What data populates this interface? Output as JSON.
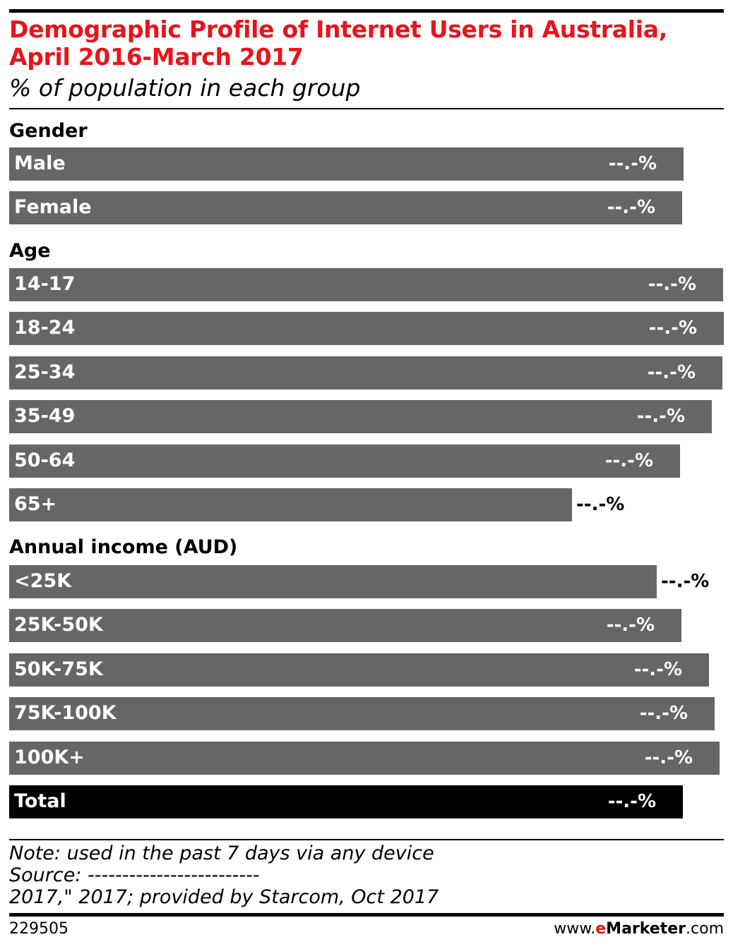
{
  "title_line1": "Demographic Profile of Internet Users in Australia,",
  "title_line2": "April 2016-March 2017",
  "subtitle": "% of population in each group",
  "chart_data": {
    "type": "bar",
    "orientation": "horizontal",
    "note": "values hidden in source; fill = bar length relative to longest bar",
    "groups": [
      {
        "heading": "Gender",
        "items": [
          {
            "label": "Male",
            "value_label": "--.-%",
            "fill": 0.944
          },
          {
            "label": "Female",
            "value_label": "--.-%",
            "fill": 0.942
          }
        ]
      },
      {
        "heading": "Age",
        "items": [
          {
            "label": "14-17",
            "value_label": "--.-%",
            "fill": 0.999
          },
          {
            "label": "18-24",
            "value_label": "--.-%",
            "fill": 1.0
          },
          {
            "label": "25-34",
            "value_label": "--.-%",
            "fill": 0.998
          },
          {
            "label": "35-49",
            "value_label": "--.-%",
            "fill": 0.983
          },
          {
            "label": "50-64",
            "value_label": "--.-%",
            "fill": 0.939
          },
          {
            "label": "65+",
            "value_label": "--.-%",
            "fill": 0.788
          }
        ]
      },
      {
        "heading": "Annual income (AUD)",
        "items": [
          {
            "label": "<25K",
            "value_label": "--.-%",
            "fill": 0.906
          },
          {
            "label": "25K-50K",
            "value_label": "--.-%",
            "fill": 0.941
          },
          {
            "label": "50K-75K",
            "value_label": "--.-%",
            "fill": 0.979
          },
          {
            "label": "75K-100K",
            "value_label": "--.-%",
            "fill": 0.987
          },
          {
            "label": "100K+",
            "value_label": "--.-%",
            "fill": 0.994
          }
        ]
      }
    ],
    "total": {
      "label": "Total",
      "value_label": "--.-%",
      "fill": 0.943
    },
    "colors": {
      "bar": "#666666",
      "total": "#000000",
      "title": "#e8141b"
    }
  },
  "notes": {
    "line1": "Note: used in the past 7 days via any device",
    "line2": "Source: -------------------------",
    "line3": "2017,\" 2017; provided by Starcom, Oct 2017"
  },
  "footer": {
    "id": "229505",
    "brand_prefix": "www.",
    "brand_e": "e",
    "brand_name": "Marketer",
    "brand_suffix": ".com"
  }
}
